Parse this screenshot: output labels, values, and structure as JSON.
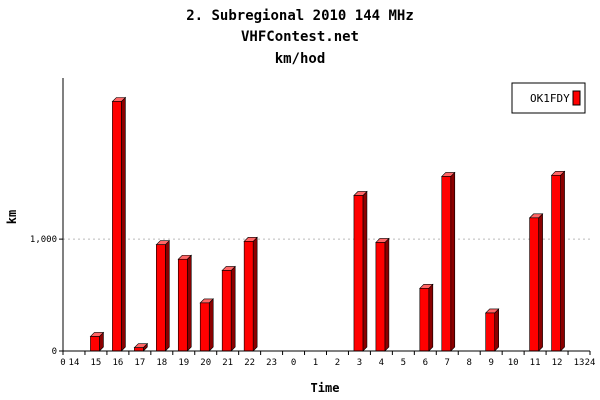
{
  "chart_data": {
    "type": "bar",
    "title": "2. Subregional 2010 144 MHz",
    "subtitle": "VHFContest.net",
    "subtitle2": "km/hod",
    "xlabel": "Time",
    "ylabel": "km",
    "categories": [
      "14",
      "15",
      "16",
      "17",
      "18",
      "19",
      "20",
      "21",
      "22",
      "23",
      "0",
      "1",
      "2",
      "3",
      "4",
      "5",
      "6",
      "7",
      "8",
      "9",
      "10",
      "11",
      "12",
      "13"
    ],
    "x_edge_labels": [
      "0",
      "24"
    ],
    "y_ticks": [
      0,
      1000
    ],
    "y_tick_labels": [
      "0",
      "1,000"
    ],
    "ylim": [
      0,
      2440
    ],
    "grid": "horizontal dotted",
    "legend_position": "top-right",
    "series": [
      {
        "name": "OK1FDY",
        "color": "#ff0000",
        "values": [
          0,
          130,
          2230,
          30,
          950,
          820,
          430,
          720,
          980,
          0,
          0,
          0,
          0,
          1390,
          970,
          0,
          560,
          1560,
          0,
          340,
          0,
          1190,
          1570,
          0
        ]
      }
    ]
  },
  "colors": {
    "bar_face": "#ff0000",
    "bar_side": "#8b0000",
    "bar_top": "#ff6666",
    "grid": "#bbbbbb"
  }
}
